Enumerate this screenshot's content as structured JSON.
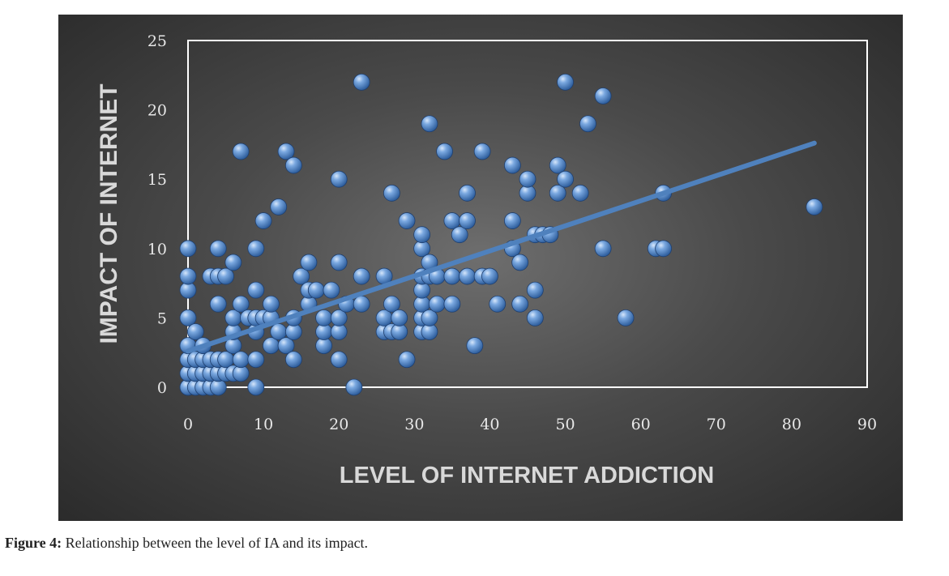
{
  "caption": {
    "label": "Figure 4:",
    "text": " Relationship between the level of IA and its impact."
  },
  "chart_data": {
    "type": "scatter",
    "title": "",
    "xlabel": "LEVEL OF INTERNET ADDICTION",
    "ylabel": "IMPACT OF INTERNET",
    "xlim": [
      0,
      90
    ],
    "ylim": [
      0,
      25
    ],
    "xticks": [
      0,
      10,
      20,
      30,
      40,
      50,
      60,
      70,
      80,
      90
    ],
    "yticks": [
      0,
      5,
      10,
      15,
      20,
      25
    ],
    "grid": false,
    "legend": "none",
    "colors": {
      "point": "#5b8fd0",
      "trendline": "#4f81bd",
      "plot_border": "#ffffff",
      "text": "#e8e8e8"
    },
    "trendline": {
      "type": "linear",
      "x": [
        0,
        83
      ],
      "y": [
        2.6,
        17.6
      ]
    },
    "points": [
      [
        0,
        0
      ],
      [
        0,
        0
      ],
      [
        0,
        1
      ],
      [
        0,
        2
      ],
      [
        0,
        3
      ],
      [
        0,
        5
      ],
      [
        0,
        7
      ],
      [
        0,
        8
      ],
      [
        0,
        10
      ],
      [
        1,
        0
      ],
      [
        1,
        1
      ],
      [
        1,
        2
      ],
      [
        1,
        4
      ],
      [
        2,
        0
      ],
      [
        2,
        1
      ],
      [
        2,
        2
      ],
      [
        2,
        3
      ],
      [
        3,
        0
      ],
      [
        3,
        1
      ],
      [
        3,
        2
      ],
      [
        3,
        8
      ],
      [
        4,
        0
      ],
      [
        4,
        1
      ],
      [
        4,
        2
      ],
      [
        4,
        6
      ],
      [
        4,
        8
      ],
      [
        4,
        10
      ],
      [
        5,
        1
      ],
      [
        5,
        2
      ],
      [
        5,
        8
      ],
      [
        6,
        1
      ],
      [
        6,
        3
      ],
      [
        6,
        4
      ],
      [
        6,
        5
      ],
      [
        6,
        9
      ],
      [
        7,
        1
      ],
      [
        7,
        2
      ],
      [
        7,
        6
      ],
      [
        7,
        17
      ],
      [
        8,
        5
      ],
      [
        9,
        0
      ],
      [
        9,
        2
      ],
      [
        9,
        4
      ],
      [
        9,
        5
      ],
      [
        9,
        7
      ],
      [
        9,
        10
      ],
      [
        10,
        5
      ],
      [
        10,
        12
      ],
      [
        11,
        3
      ],
      [
        11,
        5
      ],
      [
        11,
        6
      ],
      [
        12,
        4
      ],
      [
        12,
        13
      ],
      [
        13,
        3
      ],
      [
        13,
        17
      ],
      [
        14,
        2
      ],
      [
        14,
        4
      ],
      [
        14,
        5
      ],
      [
        14,
        16
      ],
      [
        15,
        8
      ],
      [
        16,
        6
      ],
      [
        16,
        7
      ],
      [
        16,
        9
      ],
      [
        17,
        7
      ],
      [
        18,
        3
      ],
      [
        18,
        4
      ],
      [
        18,
        5
      ],
      [
        19,
        7
      ],
      [
        20,
        2
      ],
      [
        20,
        4
      ],
      [
        20,
        5
      ],
      [
        20,
        9
      ],
      [
        20,
        15
      ],
      [
        21,
        6
      ],
      [
        22,
        0
      ],
      [
        23,
        6
      ],
      [
        23,
        8
      ],
      [
        23,
        22
      ],
      [
        26,
        4
      ],
      [
        26,
        5
      ],
      [
        26,
        8
      ],
      [
        27,
        4
      ],
      [
        27,
        6
      ],
      [
        27,
        14
      ],
      [
        28,
        4
      ],
      [
        28,
        5
      ],
      [
        29,
        2
      ],
      [
        29,
        12
      ],
      [
        31,
        4
      ],
      [
        31,
        5
      ],
      [
        31,
        6
      ],
      [
        31,
        7
      ],
      [
        31,
        8
      ],
      [
        31,
        10
      ],
      [
        31,
        11
      ],
      [
        32,
        4
      ],
      [
        32,
        5
      ],
      [
        32,
        8
      ],
      [
        32,
        9
      ],
      [
        32,
        19
      ],
      [
        33,
        6
      ],
      [
        33,
        8
      ],
      [
        34,
        17
      ],
      [
        35,
        6
      ],
      [
        35,
        8
      ],
      [
        35,
        12
      ],
      [
        36,
        11
      ],
      [
        37,
        8
      ],
      [
        37,
        12
      ],
      [
        37,
        14
      ],
      [
        38,
        3
      ],
      [
        39,
        8
      ],
      [
        39,
        17
      ],
      [
        40,
        8
      ],
      [
        41,
        6
      ],
      [
        43,
        10
      ],
      [
        43,
        12
      ],
      [
        43,
        16
      ],
      [
        44,
        6
      ],
      [
        44,
        9
      ],
      [
        45,
        14
      ],
      [
        45,
        15
      ],
      [
        46,
        5
      ],
      [
        46,
        7
      ],
      [
        46,
        11
      ],
      [
        47,
        11
      ],
      [
        48,
        11
      ],
      [
        49,
        14
      ],
      [
        49,
        16
      ],
      [
        50,
        15
      ],
      [
        50,
        22
      ],
      [
        52,
        14
      ],
      [
        53,
        19
      ],
      [
        55,
        10
      ],
      [
        55,
        21
      ],
      [
        58,
        5
      ],
      [
        62,
        10
      ],
      [
        63,
        10
      ],
      [
        63,
        14
      ],
      [
        83,
        13
      ]
    ]
  }
}
